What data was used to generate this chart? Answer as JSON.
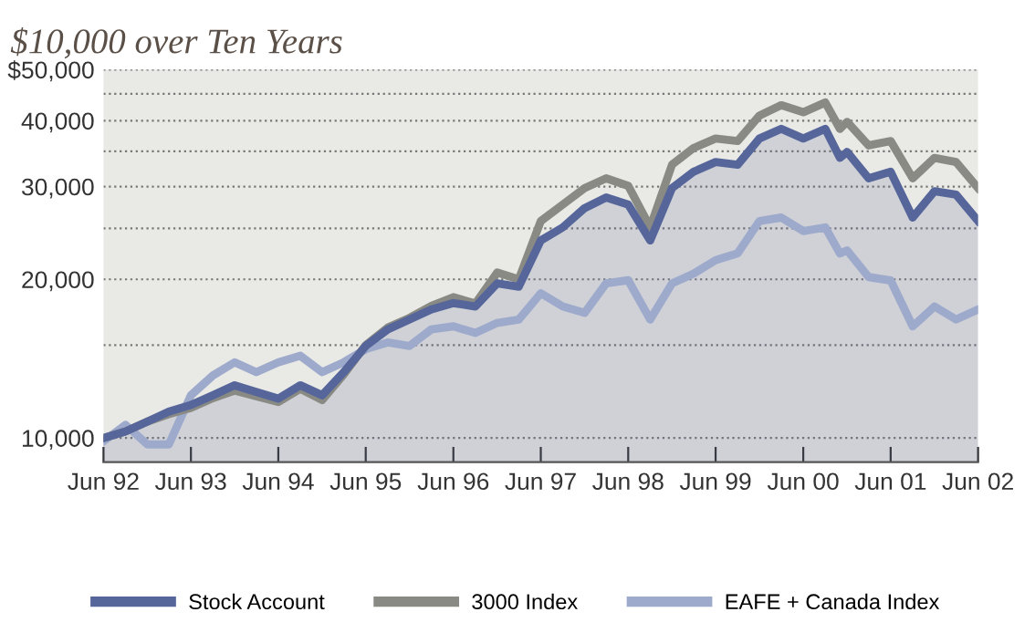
{
  "chart_data": {
    "type": "line",
    "title": "$10,000 over Ten Years",
    "x": [
      "1992-06",
      "1992-09",
      "1992-12",
      "1993-03",
      "1993-06",
      "1993-09",
      "1993-12",
      "1994-03",
      "1994-06",
      "1994-09",
      "1994-12",
      "1995-03",
      "1995-06",
      "1995-09",
      "1995-12",
      "1996-03",
      "1996-06",
      "1996-09",
      "1996-12",
      "1997-03",
      "1997-06",
      "1997-09",
      "1997-12",
      "1998-03",
      "1998-06",
      "1998-09",
      "1998-12",
      "1999-03",
      "1999-06",
      "1999-09",
      "1999-12",
      "2000-03",
      "2000-06",
      "2000-09",
      "2000-11",
      "2000-12",
      "2001-03",
      "2001-06",
      "2001-09",
      "2001-12",
      "2002-03",
      "2002-06"
    ],
    "series": [
      {
        "name": "EAFE + Canada Index",
        "color": "#9eaacb",
        "values": [
          9860,
          10590,
          9720,
          9720,
          12050,
          13140,
          13920,
          13330,
          13920,
          14320,
          13330,
          13920,
          14740,
          15180,
          14950,
          16070,
          16290,
          15820,
          16530,
          16780,
          18820,
          17760,
          17270,
          19650,
          19920,
          16780,
          19650,
          20500,
          21750,
          22400,
          25800,
          26200,
          24700,
          25100,
          22400,
          22700,
          20200,
          19900,
          16290,
          17760,
          16780,
          17530
        ]
      },
      {
        "name": "3000 Index",
        "color": "#8a8a84",
        "values": [
          10000,
          10290,
          10740,
          11100,
          11400,
          11900,
          12300,
          12000,
          11700,
          12400,
          11800,
          13200,
          15000,
          16200,
          16900,
          17800,
          18500,
          18000,
          20600,
          20000,
          25800,
          27730,
          29800,
          31100,
          30100,
          25100,
          33000,
          35500,
          37000,
          36600,
          40900,
          42800,
          41500,
          43300,
          38600,
          39800,
          35900,
          36600,
          31100,
          34000,
          33400,
          29800
        ]
      },
      {
        "name": "Stock Account",
        "type": "area",
        "color": "#56669a",
        "values": [
          10000,
          10290,
          10740,
          11220,
          11550,
          12050,
          12590,
          12230,
          11880,
          12590,
          12050,
          13330,
          14950,
          16070,
          16780,
          17530,
          18030,
          17760,
          19650,
          19370,
          23700,
          25100,
          27300,
          28600,
          27730,
          23700,
          29800,
          32000,
          33400,
          33000,
          37000,
          38600,
          37000,
          38600,
          34000,
          34900,
          31100,
          32000,
          26200,
          29400,
          28950,
          25800
        ]
      }
    ],
    "log": "y",
    "ylim": [
      9000,
      50000
    ],
    "yticks": [
      {
        "value": 10000,
        "label": "10,000"
      },
      {
        "value": 15000,
        "label": null
      },
      {
        "value": 20000,
        "label": "20,000"
      },
      {
        "value": 25000,
        "label": null
      },
      {
        "value": 30000,
        "label": "30,000"
      },
      {
        "value": 35000,
        "label": null
      },
      {
        "value": 40000,
        "label": "40,000"
      },
      {
        "value": 45000,
        "label": null
      },
      {
        "value": 50000,
        "label": "$50,000"
      }
    ],
    "xlim": [
      "1992-06",
      "2002-06"
    ],
    "xticks": [
      {
        "value": "1992-06",
        "label": "Jun 92"
      },
      {
        "value": "1993-06",
        "label": "Jun 93"
      },
      {
        "value": "1994-06",
        "label": "Jun 94"
      },
      {
        "value": "1995-06",
        "label": "Jun 95"
      },
      {
        "value": "1996-06",
        "label": "Jun 96"
      },
      {
        "value": "1997-06",
        "label": "Jun 97"
      },
      {
        "value": "1998-06",
        "label": "Jun 98"
      },
      {
        "value": "1999-06",
        "label": "Jun 99"
      },
      {
        "value": "2000-06",
        "label": "Jun 00"
      },
      {
        "value": "2001-06",
        "label": "Jun 01"
      },
      {
        "value": "2002-06",
        "label": "Jun 02"
      }
    ],
    "grid": "y",
    "legend": "bottom",
    "line_style": "solid",
    "marker": "none"
  }
}
